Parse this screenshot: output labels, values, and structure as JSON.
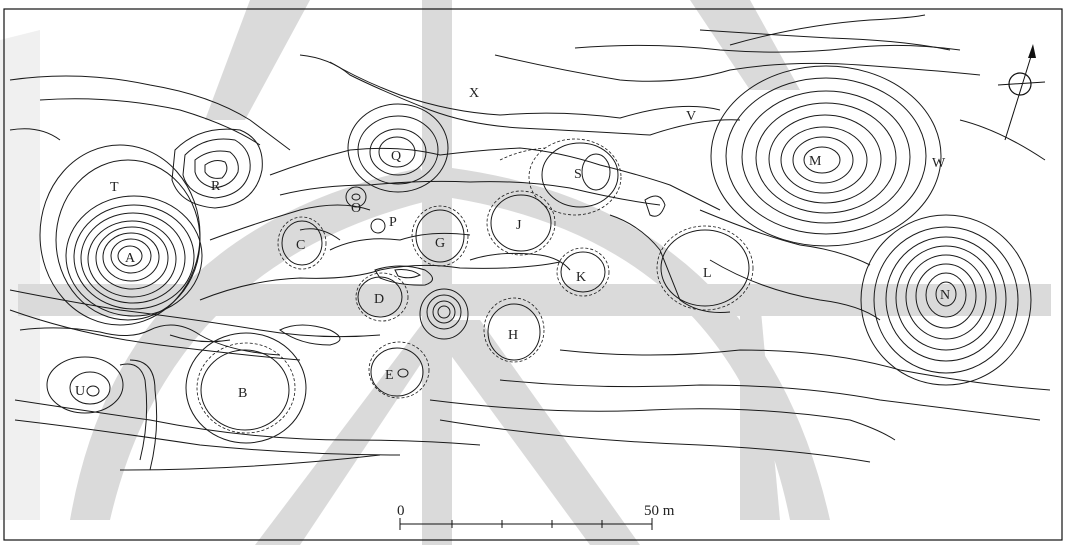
{
  "map": {
    "feature_labels": [
      {
        "id": "A",
        "text": "A"
      },
      {
        "id": "B",
        "text": "B"
      },
      {
        "id": "C",
        "text": "C"
      },
      {
        "id": "D",
        "text": "D"
      },
      {
        "id": "E",
        "text": "E"
      },
      {
        "id": "G",
        "text": "G"
      },
      {
        "id": "H",
        "text": "H"
      },
      {
        "id": "J",
        "text": "J"
      },
      {
        "id": "K",
        "text": "K"
      },
      {
        "id": "L",
        "text": "L"
      },
      {
        "id": "M",
        "text": "M"
      },
      {
        "id": "N",
        "text": "N"
      },
      {
        "id": "O",
        "text": "O"
      },
      {
        "id": "P",
        "text": "P"
      },
      {
        "id": "Q",
        "text": "Q"
      },
      {
        "id": "R",
        "text": "R"
      },
      {
        "id": "S",
        "text": "S"
      },
      {
        "id": "T",
        "text": "T"
      },
      {
        "id": "U",
        "text": "U"
      },
      {
        "id": "V",
        "text": "V"
      },
      {
        "id": "W",
        "text": "W"
      },
      {
        "id": "X",
        "text": "X"
      }
    ],
    "scale_bar": {
      "start_label": "0",
      "end_label": "50 m",
      "segments": 5
    },
    "north_arrow_icon": "north-arrow-icon",
    "colors": {
      "contour": "#1a1a1a",
      "watermark": "#d4d4d4",
      "background": "#ffffff"
    }
  }
}
